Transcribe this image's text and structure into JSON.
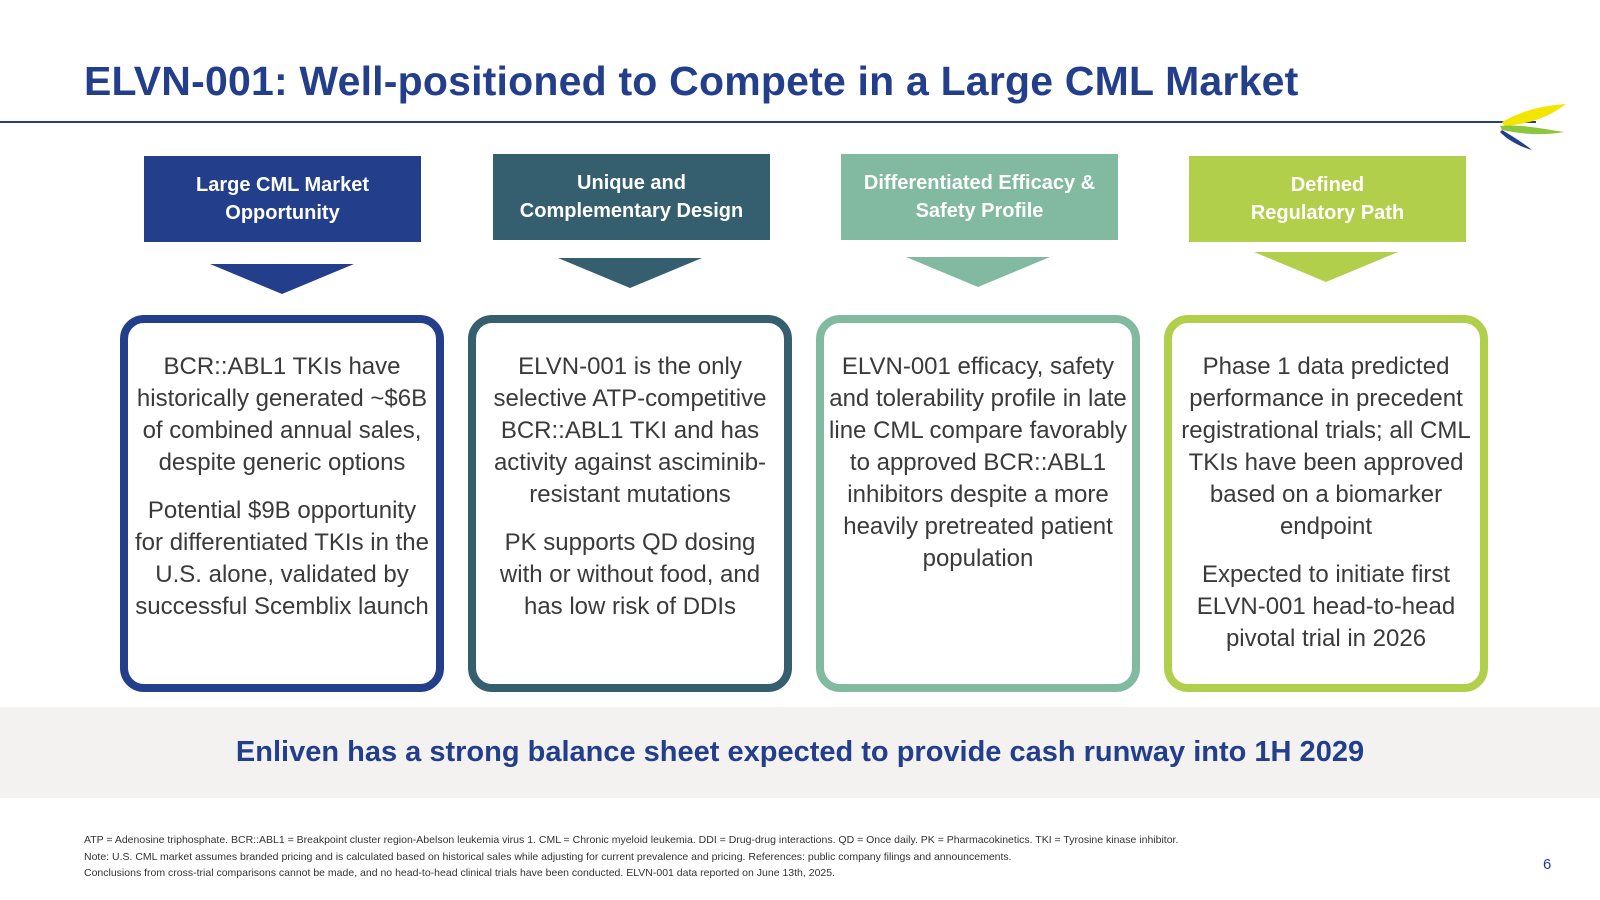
{
  "slide": {
    "title": "ELVN-001: Well-positioned to Compete in a Large CML Market",
    "page_number": "6"
  },
  "logo": {
    "icon": "enliven-swoosh-logo",
    "colors": [
      "#f2e500",
      "#8cc63f",
      "#233e8b"
    ]
  },
  "columns": [
    {
      "header": "Large CML Market\nOpportunity",
      "color": "#233e8b",
      "paragraphs": [
        "BCR::ABL1 TKIs have historically generated ~$6B of combined annual sales, despite generic options",
        "Potential $9B opportunity for differentiated TKIs in the U.S. alone, validated by successful Scemblix launch"
      ]
    },
    {
      "header": "Unique and\nComplementary Design",
      "color": "#355e6e",
      "paragraphs": [
        "ELVN-001 is the only selective ATP-competitive BCR::ABL1 TKI and has activity against asciminib-resistant mutations",
        "PK supports QD dosing with or without food, and has low risk of DDIs"
      ]
    },
    {
      "header": "Differentiated Efficacy &\nSafety Profile",
      "color": "#82b9a1",
      "paragraphs": [
        "ELVN-001 efficacy, safety and tolerability profile in late line CML compare favorably to approved BCR::ABL1 inhibitors despite a more heavily pretreated patient population"
      ]
    },
    {
      "header": "Defined\nRegulatory Path",
      "color": "#b2cf4b",
      "paragraphs": [
        "Phase 1 data predicted performance in precedent registrational trials; all CML TKIs have been approved based on a biomarker endpoint",
        "Expected to initiate first ELVN-001 head-to-head pivotal trial in 2026"
      ]
    }
  ],
  "banner": {
    "text": "Enliven has a strong balance sheet expected to provide cash runway into 1H 2029"
  },
  "footnotes": [
    "ATP = Adenosine triphosphate. BCR::ABL1 = Breakpoint cluster region-Abelson leukemia virus 1. CML = Chronic myeloid leukemia. DDI = Drug-drug interactions. QD = Once daily. PK = Pharmacokinetics. TKI = Tyrosine kinase inhibitor.",
    "Note: U.S. CML market assumes branded pricing and is calculated based on historical  sales while adjusting for current prevalence and pricing. References: public company filings and announcements.",
    "Conclusions from cross-trial comparisons cannot be made, and no head-to-head clinical trials have been conducted. ELVN-001 data reported on June 13th, 2025."
  ]
}
